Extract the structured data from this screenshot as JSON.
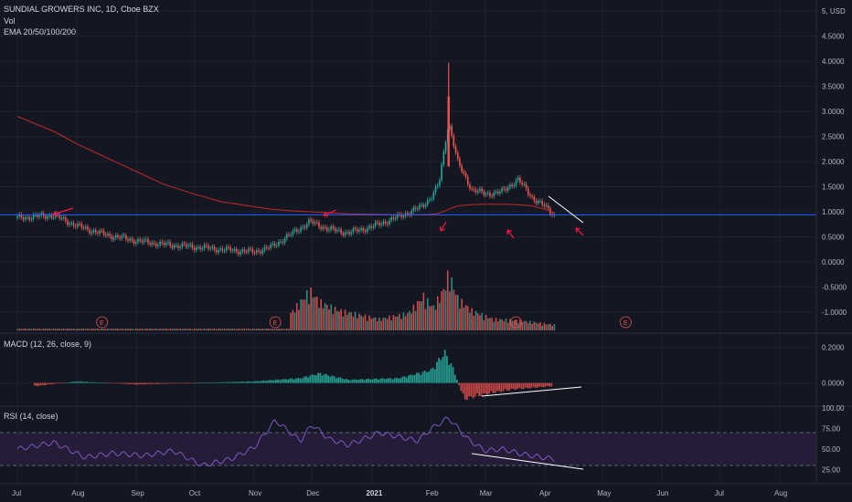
{
  "header": {
    "symbol_line": "SUNDIAL GROWERS INC, 1D, Cboe BZX",
    "vol_label": "Vol",
    "ema_label": "EMA 20/50/100/200"
  },
  "macd": {
    "title": "MACD (12, 26, close, 9)"
  },
  "rsi": {
    "title": "RSI (14, close)"
  },
  "price_axis": {
    "currency": "USD",
    "ticks": [
      "5",
      "4.5000",
      "4.0000",
      "3.5000",
      "3.0000",
      "2.5000",
      "2.0000",
      "1.5000",
      "1.0000",
      "0.5000",
      "0.0000",
      "-0.5000",
      "-1.0000"
    ]
  },
  "macd_axis": {
    "ticks": [
      "0.2000",
      "0.0000"
    ]
  },
  "rsi_axis": {
    "ticks": [
      "100.00",
      "75.00",
      "50.00",
      "25.00"
    ]
  },
  "price_labels": {
    "horizontal_line": "0.9392",
    "last_price": "0.9272",
    "countdown": "05:38:42"
  },
  "time_axis": {
    "labels": [
      "Jul",
      "Aug",
      "Sep",
      "Oct",
      "Nov",
      "Dec",
      "2021",
      "Feb",
      "Mar",
      "Apr",
      "May",
      "Jun",
      "Jul",
      "Aug"
    ]
  },
  "earnings_marker": "E",
  "colors": {
    "background": "#131722",
    "up": "#26a69a",
    "down": "#ef5350",
    "ema": "#c62828",
    "hline": "#2962ff",
    "rsi_line": "#7e57c2",
    "rsi_band": "#2a1e3f",
    "annotation": "#ff1744"
  },
  "chart_data": [
    {
      "type": "line",
      "pane": "price",
      "title": "SUNDIAL GROWERS INC, 1D, Cboe BZX",
      "x": [
        "2020-07-01",
        "2020-07-20",
        "2020-08-01",
        "2020-08-15",
        "2020-09-01",
        "2020-09-15",
        "2020-10-01",
        "2020-10-15",
        "2020-11-01",
        "2020-11-10",
        "2020-11-20",
        "2020-11-30",
        "2020-12-10",
        "2020-12-20",
        "2021-01-01",
        "2021-01-15",
        "2021-01-27",
        "2021-02-01",
        "2021-02-05",
        "2021-02-10",
        "2021-02-15",
        "2021-02-22",
        "2021-03-01",
        "2021-03-10",
        "2021-03-18",
        "2021-03-25",
        "2021-04-01",
        "2021-04-06"
      ],
      "values": [
        0.88,
        0.93,
        0.72,
        0.55,
        0.42,
        0.35,
        0.3,
        0.25,
        0.2,
        0.3,
        0.55,
        0.8,
        0.65,
        0.58,
        0.7,
        0.9,
        1.1,
        1.3,
        1.55,
        2.8,
        1.95,
        1.45,
        1.35,
        1.4,
        1.65,
        1.3,
        1.1,
        0.93
      ],
      "ema200": [
        2.9,
        2.6,
        2.35,
        2.1,
        1.8,
        1.55,
        1.35,
        1.2,
        1.1,
        1.05,
        1.02,
        1.0,
        0.98,
        0.96,
        0.95,
        0.94,
        0.94,
        0.95,
        0.97,
        1.05,
        1.12,
        1.14,
        1.15,
        1.15,
        1.14,
        1.12,
        1.05,
        0.98
      ],
      "spike": {
        "date": "2021-02-10",
        "high": 3.97
      },
      "horizontal_line": 0.9392,
      "ylim": [
        -1.2,
        5.0
      ]
    },
    {
      "type": "bar",
      "pane": "volume",
      "x": [
        "2020-11-20",
        "2020-11-30",
        "2020-12-05",
        "2020-12-15",
        "2021-01-05",
        "2021-01-20",
        "2021-01-28",
        "2021-02-02",
        "2021-02-08",
        "2021-02-10",
        "2021-02-15",
        "2021-02-22",
        "2021-03-05",
        "2021-03-15",
        "2021-03-25",
        "2021-04-05"
      ],
      "values": [
        0.3,
        0.7,
        0.5,
        0.35,
        0.2,
        0.3,
        0.6,
        0.4,
        0.75,
        1.0,
        0.55,
        0.35,
        0.2,
        0.18,
        0.15,
        0.1
      ],
      "earnings_dates": [
        "2020-08-14",
        "2020-11-12",
        "2021-03-17",
        "2021-05-13"
      ]
    },
    {
      "type": "bar",
      "pane": "macd",
      "title": "MACD (12, 26, close, 9)",
      "x": [
        "2020-07-10",
        "2020-08-01",
        "2020-09-01",
        "2020-10-01",
        "2020-11-01",
        "2020-11-25",
        "2020-12-05",
        "2020-12-20",
        "2021-01-15",
        "2021-02-01",
        "2021-02-08",
        "2021-02-12",
        "2021-02-18",
        "2021-02-25",
        "2021-03-05",
        "2021-03-15",
        "2021-03-25",
        "2021-04-05"
      ],
      "values": [
        -0.02,
        0.01,
        -0.01,
        0.0,
        0.01,
        0.03,
        0.06,
        0.02,
        0.03,
        0.08,
        0.19,
        0.1,
        -0.1,
        -0.08,
        -0.06,
        -0.04,
        -0.03,
        -0.02
      ],
      "ylim": [
        -0.1,
        0.25
      ]
    },
    {
      "type": "line",
      "pane": "rsi",
      "title": "RSI (14, close)",
      "x": [
        "2020-07-01",
        "2020-07-20",
        "2020-08-05",
        "2020-08-20",
        "2020-09-05",
        "2020-09-20",
        "2020-10-05",
        "2020-10-20",
        "2020-11-01",
        "2020-11-12",
        "2020-11-25",
        "2020-12-01",
        "2020-12-10",
        "2020-12-20",
        "2021-01-05",
        "2021-01-15",
        "2021-01-25",
        "2021-02-01",
        "2021-02-10",
        "2021-02-20",
        "2021-03-01",
        "2021-03-10",
        "2021-03-20",
        "2021-03-30",
        "2021-04-06"
      ],
      "values": [
        50,
        58,
        40,
        45,
        42,
        48,
        30,
        38,
        52,
        85,
        60,
        80,
        62,
        55,
        70,
        65,
        60,
        75,
        88,
        62,
        48,
        50,
        44,
        40,
        38
      ],
      "bands": [
        70,
        30
      ],
      "ylim": [
        10,
        100
      ]
    }
  ]
}
